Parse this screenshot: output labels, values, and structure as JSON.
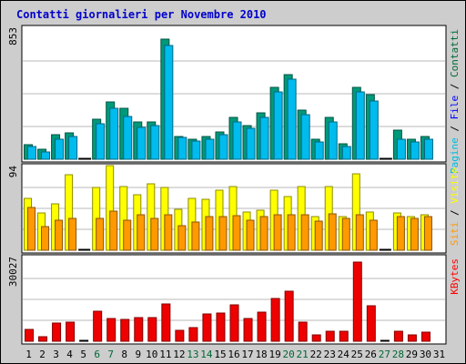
{
  "chart_data": {
    "type": "bar",
    "title": "Contatti giornalieri per Novembre 2010",
    "title_color": "#0000cc",
    "background": "#cdcdcd",
    "plot_background": "#ffffff",
    "categories": [
      "1",
      "2",
      "3",
      "4",
      "5",
      "6",
      "7",
      "8",
      "9",
      "10",
      "11",
      "12",
      "13",
      "14",
      "15",
      "16",
      "17",
      "18",
      "19",
      "20",
      "21",
      "22",
      "23",
      "24",
      "25",
      "26",
      "27",
      "28",
      "29",
      "30",
      "31"
    ],
    "weekend_days": [
      "6",
      "7",
      "13",
      "14",
      "20",
      "21",
      "27",
      "28"
    ],
    "weekend_color": "#006633",
    "day_color": "#000000",
    "panels": [
      {
        "id": "contacts",
        "ymax_label": "853",
        "ylim": [
          0,
          853
        ],
        "right_labels": [
          {
            "text": "Pagine",
            "color": "#00bbdd"
          },
          {
            "text": " / ",
            "color": "#000000"
          },
          {
            "text": "File",
            "color": "#0000ff"
          },
          {
            "text": " / ",
            "color": "#000000"
          },
          {
            "text": "Contatti",
            "color": "#006633"
          }
        ],
        "series": [
          {
            "name": "Contatti",
            "color": "#00997a",
            "values": [
              95,
              65,
              160,
              170,
              0,
              260,
              375,
              330,
              240,
              240,
              780,
              150,
              130,
              150,
              180,
              270,
              220,
              300,
              470,
              550,
              320,
              130,
              270,
              100,
              470,
              420,
              0,
              190,
              130,
              150,
              null
            ]
          },
          {
            "name": "File",
            "color": "#00bbee",
            "values": [
              80,
              50,
              130,
              150,
              0,
              230,
              330,
              280,
              210,
              220,
              740,
              140,
              120,
              130,
              160,
              240,
              200,
              270,
              440,
              520,
              290,
              110,
              240,
              80,
              440,
              380,
              0,
              130,
              110,
              130,
              null
            ]
          }
        ]
      },
      {
        "id": "visits",
        "ymax_label": "94",
        "ylim": [
          0,
          94
        ],
        "right_labels": [
          {
            "text": "Siti",
            "color": "#ff9900"
          },
          {
            "text": " / ",
            "color": "#000000"
          },
          {
            "text": "Visite",
            "color": "#ffff00"
          }
        ],
        "series": [
          {
            "name": "Visite",
            "color": "#ffff00",
            "values": [
              58,
              42,
              52,
              85,
              0,
              71,
              95,
              72,
              62,
              75,
              70,
              46,
              58,
              57,
              67,
              72,
              43,
              45,
              67,
              60,
              72,
              38,
              72,
              38,
              86,
              43,
              0,
              42,
              38,
              40,
              null
            ]
          },
          {
            "name": "Siti",
            "color": "#ff9900",
            "values": [
              48,
              27,
              34,
              36,
              0,
              36,
              44,
              34,
              40,
              36,
              40,
              28,
              32,
              38,
              38,
              39,
              34,
              38,
              40,
              40,
              40,
              33,
              41,
              36,
              40,
              34,
              0,
              38,
              36,
              38,
              null
            ]
          }
        ]
      },
      {
        "id": "kbytes",
        "ymax_label": "30027",
        "ylim": [
          0,
          30027
        ],
        "right_labels": [
          {
            "text": "KBytes",
            "color": "#ff0000"
          }
        ],
        "series": [
          {
            "name": "KBytes",
            "color": "#ee0000",
            "values": [
              4300,
              1500,
              6600,
              7000,
              0,
              10800,
              8000,
              7800,
              8600,
              8600,
              13300,
              4000,
              5000,
              9800,
              10200,
              13000,
              8000,
              10500,
              15500,
              18000,
              7000,
              2300,
              3700,
              3700,
              28500,
              12800,
              0,
              3500,
              2300,
              3200,
              null
            ]
          }
        ]
      }
    ]
  }
}
